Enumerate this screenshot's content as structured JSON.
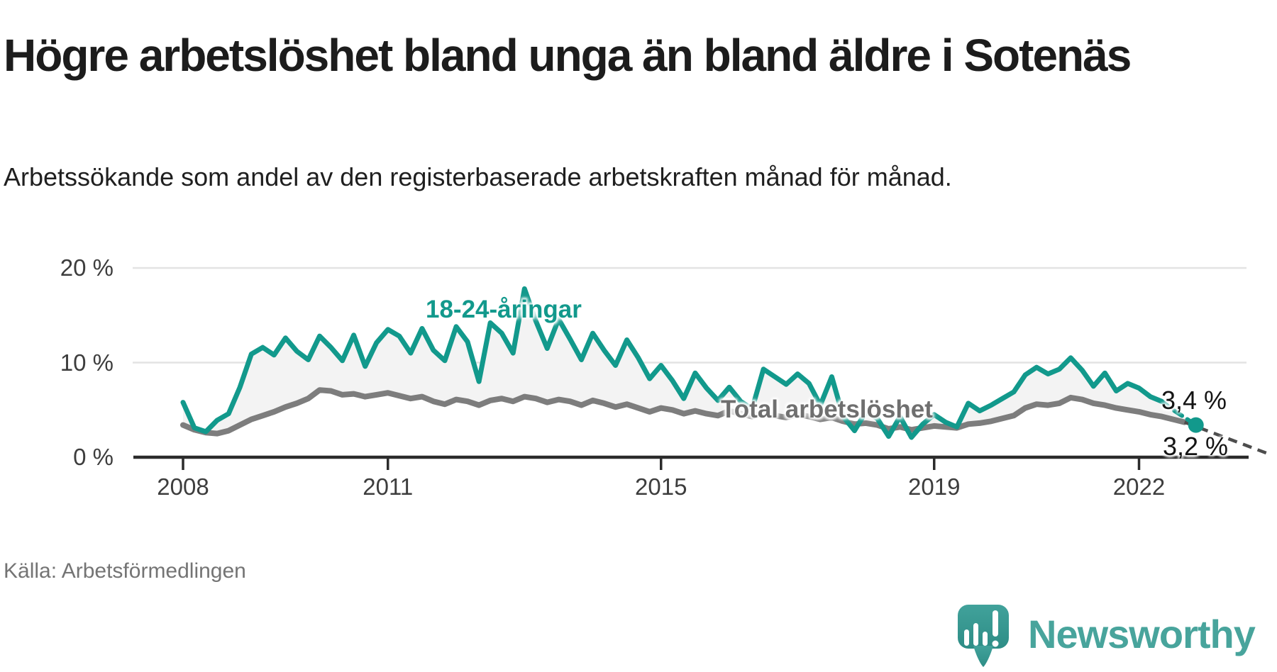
{
  "header": {
    "title": "Högre arbetslöshet bland unga än bland äldre i Sotenäs",
    "subtitle": "Arbetssökande som andel av den registerbaserade arbetskraften månad för månad."
  },
  "source": {
    "label": "Källa: Arbetsförmedlingen"
  },
  "logo": {
    "name": "Newsworthy",
    "icon": "bar-chart-speech-bubble-icon"
  },
  "colors": {
    "youth_line": "#12998c",
    "total_line": "#7d7d7d",
    "area_fill": "#f3f3f3",
    "grid": "#e3e3e3",
    "axis": "#2b2b2b",
    "leader_dash": "#4d4d4d",
    "logo_teal_light": "#41a29b",
    "logo_teal_dark": "#2e8d86"
  },
  "chart_data": {
    "type": "line",
    "title": "Högre arbetslöshet bland unga än bland äldre i Sotenäs",
    "xlabel": "",
    "ylabel": "Arbetssökande som andel av den registerbaserade arbetskraften",
    "x_start_year": 2008,
    "x_step_months": 2,
    "x_end": "2022-10",
    "ylim": [
      0,
      21
    ],
    "grid": "horizontal",
    "legend_position": "inline-labels",
    "x_ticks": [
      2008,
      2011,
      2015,
      2019,
      2022
    ],
    "y_ticks": [
      {
        "value": 0,
        "label": "0 %"
      },
      {
        "value": 10,
        "label": "10 %"
      },
      {
        "value": 20,
        "label": "20 %"
      }
    ],
    "series": [
      {
        "name": "18-24-åringar",
        "color": "#12998c",
        "end_label": "3,4 %",
        "end_value": 3.4,
        "values": [
          5.8,
          3.1,
          2.7,
          3.9,
          4.6,
          7.4,
          10.9,
          11.6,
          10.8,
          12.6,
          11.2,
          10.3,
          12.8,
          11.6,
          10.2,
          12.9,
          9.6,
          12.1,
          13.5,
          12.8,
          11.0,
          13.6,
          11.3,
          10.2,
          13.8,
          12.2,
          8.0,
          14.2,
          13.1,
          11.0,
          17.8,
          14.4,
          11.5,
          14.6,
          12.5,
          10.3,
          13.1,
          11.3,
          9.7,
          12.4,
          10.5,
          8.3,
          9.7,
          8.1,
          6.2,
          8.9,
          7.3,
          6.0,
          7.4,
          5.9,
          5.1,
          9.3,
          8.5,
          7.7,
          8.8,
          7.8,
          5.5,
          8.5,
          4.3,
          2.8,
          4.8,
          4.1,
          2.2,
          4.3,
          2.1,
          3.5,
          4.5,
          3.7,
          3.2,
          5.7,
          4.9,
          5.5,
          6.2,
          6.9,
          8.7,
          9.5,
          8.8,
          9.3,
          10.5,
          9.2,
          7.5,
          8.9,
          7.0,
          7.8,
          7.3,
          6.4,
          5.9,
          5.0,
          4.2,
          3.4
        ]
      },
      {
        "name": "Total arbetslöshet",
        "color": "#7d7d7d",
        "end_label": "3,2 %",
        "end_value": 3.2,
        "values": [
          3.4,
          2.9,
          2.6,
          2.5,
          2.8,
          3.4,
          4.0,
          4.4,
          4.8,
          5.3,
          5.7,
          6.2,
          7.1,
          7.0,
          6.6,
          6.7,
          6.4,
          6.6,
          6.8,
          6.5,
          6.2,
          6.4,
          5.9,
          5.6,
          6.1,
          5.9,
          5.5,
          6.0,
          6.2,
          5.9,
          6.4,
          6.2,
          5.8,
          6.1,
          5.9,
          5.5,
          6.0,
          5.7,
          5.3,
          5.6,
          5.2,
          4.8,
          5.2,
          5.0,
          4.6,
          4.9,
          4.6,
          4.4,
          4.9,
          4.6,
          4.3,
          4.7,
          4.4,
          4.2,
          4.5,
          4.3,
          4.0,
          4.2,
          3.8,
          3.5,
          3.6,
          3.4,
          3.0,
          3.2,
          2.9,
          3.1,
          3.3,
          3.2,
          3.1,
          3.5,
          3.6,
          3.8,
          4.1,
          4.4,
          5.2,
          5.6,
          5.5,
          5.7,
          6.3,
          6.1,
          5.7,
          5.5,
          5.2,
          5.0,
          4.8,
          4.5,
          4.3,
          4.0,
          3.7,
          3.2
        ]
      }
    ]
  }
}
